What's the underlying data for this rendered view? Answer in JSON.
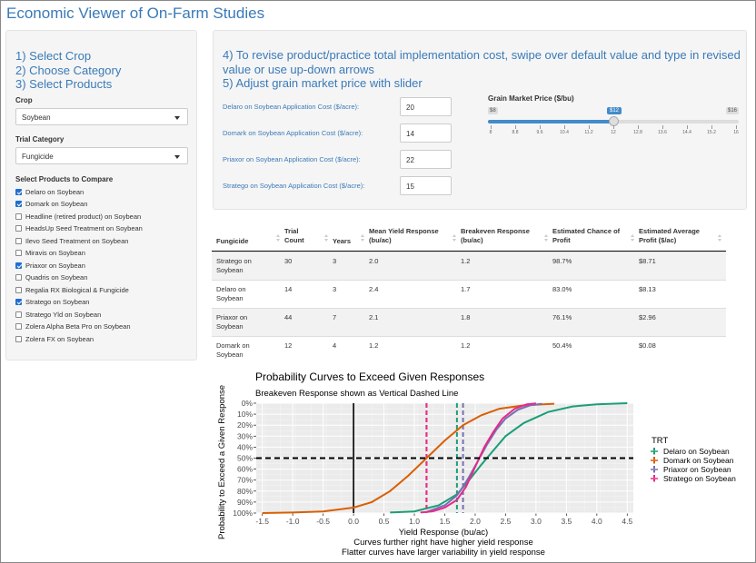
{
  "app": {
    "title": "Economic Viewer of On-Farm Studies"
  },
  "left": {
    "steps": [
      "1) Select Crop",
      "2) Choose Category",
      "3) Select Products"
    ],
    "crop_label": "Crop",
    "crop_value": "Soybean",
    "category_label": "Trial Category",
    "category_value": "Fungicide",
    "products_label": "Select Products to Compare",
    "products": [
      {
        "label": "Delaro on Soybean",
        "checked": true
      },
      {
        "label": "Domark on Soybean",
        "checked": true
      },
      {
        "label": "Headline (retired product) on Soybean",
        "checked": false
      },
      {
        "label": "HeadsUp Seed Treatment on Soybean",
        "checked": false
      },
      {
        "label": "Ilevo Seed Treatment on Soybean",
        "checked": false
      },
      {
        "label": "Miravis on Soybean",
        "checked": false
      },
      {
        "label": "Priaxor on Soybean",
        "checked": true
      },
      {
        "label": "Quadris on Soybean",
        "checked": false
      },
      {
        "label": "Regalia RX Biological & Fungicide",
        "checked": false
      },
      {
        "label": "Stratego on Soybean",
        "checked": true
      },
      {
        "label": "Stratego Yld on Soybean",
        "checked": false
      },
      {
        "label": "Zolera Alpha Beta Pro on Soybean",
        "checked": false
      },
      {
        "label": "Zolera FX on Soybean",
        "checked": false
      }
    ]
  },
  "right": {
    "steps": [
      "4) To revise product/practice total implementation cost, swipe over default value and type in revised value or use up-down arrows",
      "5) Adjust grain market price with slider"
    ],
    "costs": [
      {
        "label": "Delaro on Soybean Application Cost ($/acre):",
        "value": "20"
      },
      {
        "label": "Domark on Soybean Application Cost ($/acre):",
        "value": "14"
      },
      {
        "label": "Priaxor on Soybean Application Cost ($/acre):",
        "value": "22"
      },
      {
        "label": "Stratego on Soybean Application Cost ($/acre):",
        "value": "15"
      }
    ],
    "slider": {
      "label": "Grain Market Price ($/bu)",
      "min_label": "$8",
      "max_label": "$16",
      "value_label": "$12",
      "min": 8,
      "max": 16,
      "value": 12,
      "ticks": [
        "8",
        "8.8",
        "9.6",
        "10.4",
        "11.2",
        "12",
        "12.8",
        "13.6",
        "14.4",
        "15.2",
        "16"
      ]
    }
  },
  "table": {
    "headers": [
      "Fungicide",
      "Trial Count",
      "Years",
      "Mean Yield Response (bu/ac)",
      "Breakeven Response (bu/ac)",
      "Estimated Chance of Profit",
      "Estimated Average Profit ($/ac)"
    ],
    "rows": [
      [
        "Stratego on Soybean",
        "30",
        "3",
        "2.0",
        "1.2",
        "98.7%",
        "$8.71"
      ],
      [
        "Delaro on Soybean",
        "14",
        "3",
        "2.4",
        "1.7",
        "83.0%",
        "$8.13"
      ],
      [
        "Priaxor on Soybean",
        "44",
        "7",
        "2.1",
        "1.8",
        "76.1%",
        "$2.96"
      ],
      [
        "Domark on Soybean",
        "12",
        "4",
        "1.2",
        "1.2",
        "50.4%",
        "$0.08"
      ]
    ]
  },
  "chart_data": {
    "type": "line",
    "title": "Probability Curves to Exceed Given Responses",
    "subtitle": "Breakeven Response shown as Vertical Dashed Line",
    "xlabel": "Yield Response (bu/ac)",
    "ylabel": "Probability to Exceed a Given Response",
    "captions": [
      "Curves further right have higher yield response",
      "Flatter curves have larger variability in yield response"
    ],
    "xlim": [
      -1.6,
      4.6
    ],
    "ylim": [
      0,
      100
    ],
    "y_reversed": true,
    "x_ticks": [
      -1.5,
      -1.0,
      -0.5,
      0.0,
      0.5,
      1.0,
      1.5,
      2.0,
      2.5,
      3.0,
      3.5,
      4.0,
      4.5
    ],
    "x_tick_labels": [
      "-1.5",
      "-1.0",
      "-0.5",
      "0.0",
      "0.5",
      "1.0",
      "1.5",
      "2.0",
      "2.5",
      "3.0",
      "3.5",
      "4.0",
      "4.5"
    ],
    "y_ticks": [
      0,
      10,
      20,
      30,
      40,
      50,
      60,
      70,
      80,
      90,
      100
    ],
    "y_tick_labels": [
      "0%",
      "10%",
      "20%",
      "30%",
      "40%",
      "50%",
      "60%",
      "70%",
      "80%",
      "90%",
      "100%"
    ],
    "legend_title": "TRT",
    "legend_position": "right",
    "hline_y": 50,
    "vline_x": 0,
    "series": [
      {
        "name": "Delaro on Soybean",
        "color": "#1b9e77",
        "breakeven": 1.7,
        "points": [
          [
            0.6,
            99.5
          ],
          [
            1.0,
            98.5
          ],
          [
            1.4,
            93
          ],
          [
            1.7,
            83
          ],
          [
            1.9,
            70
          ],
          [
            2.1,
            56
          ],
          [
            2.3,
            43
          ],
          [
            2.5,
            30
          ],
          [
            2.8,
            18
          ],
          [
            3.2,
            8
          ],
          [
            3.6,
            3
          ],
          [
            4.0,
            1
          ],
          [
            4.5,
            0
          ]
        ]
      },
      {
        "name": "Domark on Soybean",
        "color": "#d95f02",
        "breakeven": 1.2,
        "points": [
          [
            -1.5,
            100
          ],
          [
            -1.0,
            99.5
          ],
          [
            -0.5,
            98.5
          ],
          [
            0.0,
            95
          ],
          [
            0.3,
            90
          ],
          [
            0.6,
            80
          ],
          [
            0.9,
            66
          ],
          [
            1.2,
            50
          ],
          [
            1.5,
            34
          ],
          [
            1.8,
            20
          ],
          [
            2.1,
            11
          ],
          [
            2.4,
            5
          ],
          [
            2.8,
            2
          ],
          [
            3.3,
            0.5
          ]
        ]
      },
      {
        "name": "Priaxor on Soybean",
        "color": "#7570b3",
        "breakeven": 1.8,
        "points": [
          [
            1.2,
            99
          ],
          [
            1.5,
            93
          ],
          [
            1.7,
            84
          ],
          [
            1.8,
            76
          ],
          [
            1.9,
            67
          ],
          [
            2.0,
            57
          ],
          [
            2.1,
            47
          ],
          [
            2.2,
            37
          ],
          [
            2.35,
            24
          ],
          [
            2.5,
            14
          ],
          [
            2.7,
            6
          ],
          [
            2.9,
            2
          ],
          [
            3.1,
            0.5
          ]
        ]
      },
      {
        "name": "Stratego on Soybean",
        "color": "#e7298a",
        "breakeven": 1.2,
        "points": [
          [
            1.1,
            99.5
          ],
          [
            1.3,
            98.5
          ],
          [
            1.5,
            95
          ],
          [
            1.7,
            88
          ],
          [
            1.85,
            76
          ],
          [
            1.95,
            64
          ],
          [
            2.05,
            52
          ],
          [
            2.15,
            40
          ],
          [
            2.3,
            26
          ],
          [
            2.45,
            14
          ],
          [
            2.65,
            5
          ],
          [
            2.85,
            1
          ],
          [
            3.0,
            0.2
          ]
        ]
      }
    ]
  }
}
